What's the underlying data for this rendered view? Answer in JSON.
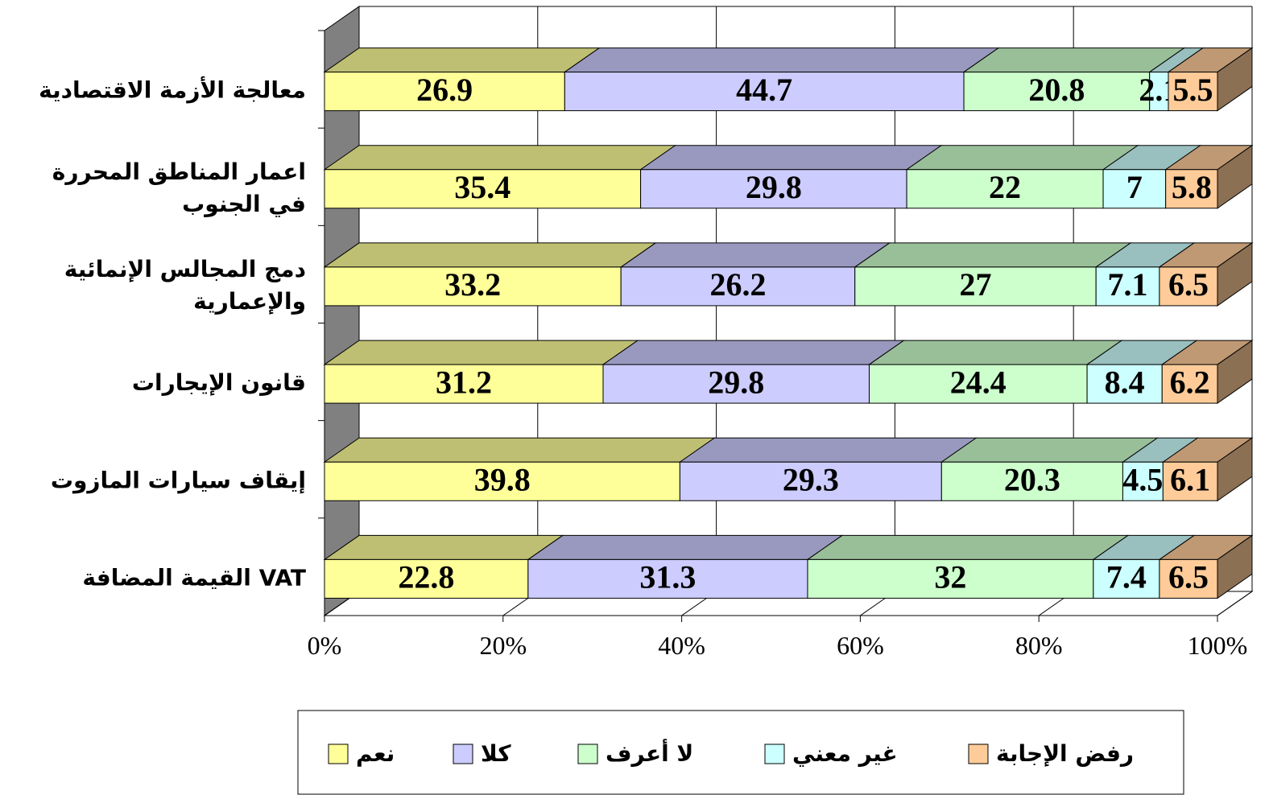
{
  "chart_data": {
    "type": "bar",
    "orientation": "horizontal",
    "stacked": true,
    "categories": [
      "معالجة الأزمة الاقتصادية",
      "اعمار المناطق المحررة\nفي الجنوب",
      "دمج المجالس الإنمائية\nوالإعمارية",
      "قانون الإيجارات",
      "إيقاف سيارات المازوت",
      "القيمة المضافة VAT"
    ],
    "series": [
      {
        "name": "نعم",
        "color": "#ffff99",
        "values": [
          26.9,
          35.4,
          33.2,
          31.2,
          39.8,
          22.8
        ]
      },
      {
        "name": "كلا",
        "color": "#ccccff",
        "values": [
          44.7,
          29.8,
          26.2,
          29.8,
          29.3,
          31.3
        ]
      },
      {
        "name": "لا أعرف",
        "color": "#ccffcc",
        "values": [
          20.8,
          22,
          27,
          24.4,
          20.3,
          32
        ]
      },
      {
        "name": "غير معني",
        "color": "#ccffff",
        "values": [
          2.1,
          7,
          7.1,
          8.4,
          4.5,
          7.4
        ]
      },
      {
        "name": "رفض الإجابة",
        "color": "#ffcc99",
        "values": [
          5.5,
          5.8,
          6.5,
          6.2,
          6.1,
          6.5
        ]
      }
    ],
    "xlim": [
      0,
      100
    ],
    "xticks": [
      {
        "value": 0,
        "label": "0%"
      },
      {
        "value": 20,
        "label": "20%"
      },
      {
        "value": 40,
        "label": "40%"
      },
      {
        "value": 60,
        "label": "60%"
      },
      {
        "value": 80,
        "label": "80%"
      },
      {
        "value": 100,
        "label": "100%"
      }
    ],
    "grid": true,
    "legend": "bottom"
  }
}
